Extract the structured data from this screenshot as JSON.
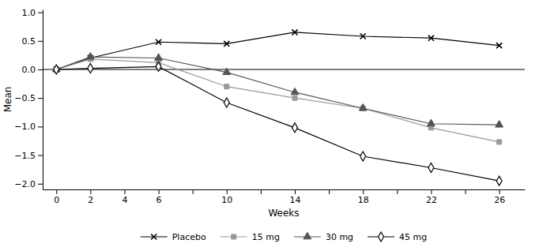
{
  "chart_data": {
    "type": "line",
    "x_label": "Weeks",
    "y_label": "Mean",
    "x": [
      0,
      2,
      6,
      10,
      14,
      18,
      22,
      26
    ],
    "series": [
      {
        "name": "Placebo",
        "color": "#000000",
        "marker": "x",
        "values": [
          0.0,
          0.2,
          0.48,
          0.45,
          0.65,
          0.58,
          0.55,
          0.42
        ]
      },
      {
        "name": "15 mg",
        "color": "#999999",
        "marker": "square",
        "values": [
          0.0,
          0.18,
          0.12,
          -0.3,
          -0.5,
          -0.68,
          -1.02,
          -1.27
        ]
      },
      {
        "name": "30 mg",
        "color": "#555555",
        "marker": "triangle",
        "values": [
          0.0,
          0.22,
          0.2,
          -0.05,
          -0.4,
          -0.68,
          -0.95,
          -0.97
        ]
      },
      {
        "name": "45 mg",
        "color": "#000000",
        "marker": "diamond-open",
        "values": [
          0.0,
          0.02,
          0.05,
          -0.58,
          -1.02,
          -1.52,
          -1.72,
          -1.95
        ]
      }
    ],
    "xlim": [
      -0.8,
      27.5
    ],
    "ylim": [
      -2.1,
      1.05
    ],
    "xticks": [
      0,
      2,
      4,
      6,
      {
        "value": 8,
        "label": null
      },
      10,
      {
        "value": 12,
        "label": null
      },
      14,
      {
        "value": 16,
        "label": null
      },
      18,
      {
        "value": 20,
        "label": null
      },
      22,
      {
        "value": 24,
        "label": null
      },
      26
    ],
    "yticks": [
      {
        "value": -2.0,
        "label": "−2.0"
      },
      {
        "value": -1.5,
        "label": "−1.5"
      },
      {
        "value": -1.0,
        "label": "−1.0"
      },
      {
        "value": -0.5,
        "label": "−0.5"
      },
      {
        "value": 0.0,
        "label": "0.0"
      },
      {
        "value": 0.5,
        "label": "0.5"
      },
      {
        "value": 1.0,
        "label": "1.0"
      }
    ],
    "baseline": 0,
    "legend": "bottom",
    "grid": false
  }
}
